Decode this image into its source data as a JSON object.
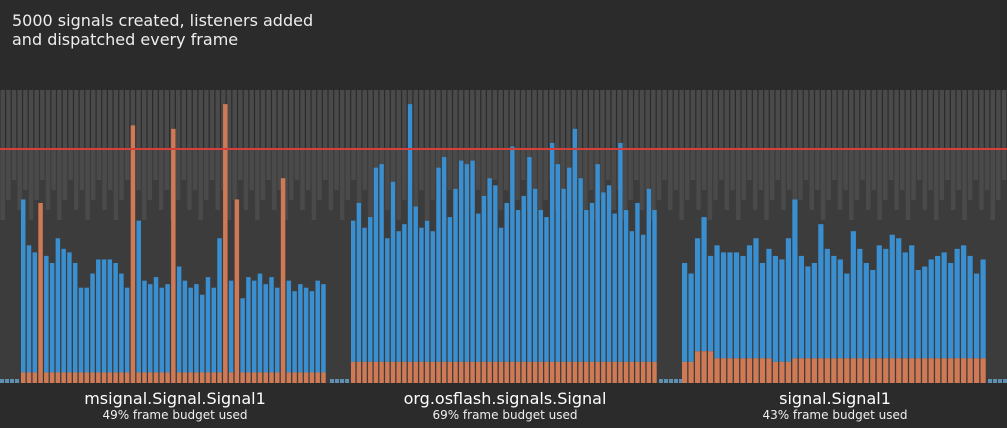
{
  "title": {
    "line1": "5000 signals created, listeners added",
    "line2": "and dispatched every frame"
  },
  "colors": {
    "background": "#2b2b2b",
    "plot_area": "#3c3c3c",
    "bg_bars": "#4a4a4a",
    "dispatch": "#3a8fd1",
    "create": "#cf7a55",
    "idle": "#5e8fb0",
    "budget_line": "#d6403b"
  },
  "chart_data": {
    "type": "bar",
    "stacked": true,
    "ylim": [
      0,
      1
    ],
    "grid": false,
    "budget_line": 0.7,
    "sections": [
      {
        "name": "msignal.Signal.Signal1",
        "budget_text": "49% frame budget used",
        "totals": [
          0.52,
          0.39,
          0.37,
          0.51,
          0.36,
          0.34,
          0.41,
          0.38,
          0.37,
          0.34,
          0.27,
          0.27,
          0.31,
          0.35,
          0.35,
          0.35,
          0.34,
          0.31,
          0.27,
          0.73,
          0.46,
          0.29,
          0.28,
          0.3,
          0.27,
          0.28,
          0.72,
          0.33,
          0.29,
          0.27,
          0.28,
          0.25,
          0.3,
          0.27,
          0.41,
          0.79,
          0.29,
          0.52,
          0.24,
          0.3,
          0.29,
          0.31,
          0.28,
          0.3,
          0.27,
          0.58,
          0.29,
          0.26,
          0.28,
          0.27,
          0.26,
          0.29,
          0.28
        ],
        "creates": [
          0.03,
          0.03,
          0.03,
          0.51,
          0.03,
          0.03,
          0.03,
          0.03,
          0.03,
          0.03,
          0.03,
          0.03,
          0.03,
          0.03,
          0.03,
          0.03,
          0.03,
          0.03,
          0.03,
          0.73,
          0.03,
          0.03,
          0.03,
          0.03,
          0.03,
          0.03,
          0.72,
          0.03,
          0.03,
          0.03,
          0.03,
          0.03,
          0.03,
          0.03,
          0.03,
          0.79,
          0.03,
          0.52,
          0.03,
          0.03,
          0.03,
          0.03,
          0.03,
          0.03,
          0.03,
          0.58,
          0.03,
          0.03,
          0.03,
          0.03,
          0.03,
          0.03,
          0.03
        ]
      },
      {
        "name": "org.osflash.signals.Signal",
        "budget_text": "69% frame budget used",
        "totals": [
          0.46,
          0.51,
          0.44,
          0.47,
          0.61,
          0.62,
          0.41,
          0.57,
          0.43,
          0.45,
          0.79,
          0.5,
          0.44,
          0.46,
          0.43,
          0.61,
          0.64,
          0.47,
          0.55,
          0.63,
          0.62,
          0.63,
          0.48,
          0.53,
          0.58,
          0.56,
          0.44,
          0.51,
          0.67,
          0.49,
          0.53,
          0.64,
          0.55,
          0.49,
          0.47,
          0.68,
          0.62,
          0.55,
          0.61,
          0.72,
          0.58,
          0.49,
          0.51,
          0.62,
          0.54,
          0.56,
          0.48,
          0.68,
          0.49,
          0.43,
          0.51,
          0.42,
          0.55,
          0.49
        ],
        "creates": [
          0.06,
          0.06,
          0.06,
          0.06,
          0.06,
          0.06,
          0.06,
          0.06,
          0.06,
          0.06,
          0.06,
          0.06,
          0.06,
          0.06,
          0.06,
          0.06,
          0.06,
          0.06,
          0.06,
          0.06,
          0.06,
          0.06,
          0.06,
          0.06,
          0.06,
          0.06,
          0.06,
          0.06,
          0.06,
          0.06,
          0.06,
          0.06,
          0.06,
          0.06,
          0.06,
          0.06,
          0.06,
          0.06,
          0.06,
          0.06,
          0.06,
          0.06,
          0.06,
          0.06,
          0.06,
          0.06,
          0.06,
          0.06,
          0.06,
          0.06,
          0.06,
          0.06,
          0.06,
          0.06
        ]
      },
      {
        "name": "signal.Signal1",
        "budget_text": "43% frame budget used",
        "totals": [
          0.34,
          0.31,
          0.41,
          0.47,
          0.36,
          0.39,
          0.37,
          0.37,
          0.37,
          0.36,
          0.39,
          0.41,
          0.34,
          0.38,
          0.36,
          0.35,
          0.41,
          0.52,
          0.36,
          0.33,
          0.34,
          0.45,
          0.38,
          0.36,
          0.35,
          0.31,
          0.43,
          0.38,
          0.34,
          0.32,
          0.39,
          0.38,
          0.42,
          0.41,
          0.37,
          0.39,
          0.32,
          0.33,
          0.35,
          0.36,
          0.37,
          0.34,
          0.38,
          0.39,
          0.36,
          0.31,
          0.35
        ],
        "creates": [
          0.06,
          0.06,
          0.09,
          0.09,
          0.09,
          0.07,
          0.07,
          0.07,
          0.07,
          0.07,
          0.07,
          0.07,
          0.07,
          0.07,
          0.06,
          0.06,
          0.06,
          0.07,
          0.07,
          0.07,
          0.07,
          0.07,
          0.07,
          0.07,
          0.07,
          0.07,
          0.07,
          0.07,
          0.07,
          0.07,
          0.07,
          0.07,
          0.07,
          0.07,
          0.07,
          0.07,
          0.07,
          0.07,
          0.07,
          0.07,
          0.07,
          0.07,
          0.07,
          0.07,
          0.07,
          0.07,
          0.07
        ]
      }
    ],
    "background_bars": [
      0.62,
      0.58,
      0.66,
      0.6,
      0.64,
      0.57,
      0.61,
      0.63,
      0.59,
      0.65,
      0.56,
      0.62,
      0.6,
      0.64,
      0.58,
      0.63,
      0.57,
      0.61,
      0.66,
      0.59,
      0.62,
      0.6,
      0.64,
      0.58,
      0.61,
      0.63,
      0.57,
      0.65,
      0.6,
      0.62,
      0.59,
      0.64,
      0.58,
      0.61,
      0.66,
      0.57,
      0.63,
      0.6,
      0.62,
      0.59,
      0.64,
      0.58,
      0.61,
      0.63,
      0.6,
      0.57,
      0.65,
      0.62,
      0.59,
      0.61,
      0.64,
      0.58,
      0.63,
      0.6,
      0.62,
      0.66,
      0.57,
      0.61,
      0.64,
      0.59,
      0.63,
      0.58,
      0.6,
      0.62,
      0.65,
      0.57,
      0.61,
      0.64,
      0.59,
      0.62,
      0.6,
      0.63,
      0.58,
      0.61,
      0.64,
      0.57,
      0.62,
      0.6,
      0.66,
      0.59,
      0.63,
      0.58,
      0.61,
      0.64,
      0.6,
      0.62,
      0.57,
      0.63,
      0.59,
      0.61,
      0.65,
      0.58,
      0.62,
      0.6,
      0.64,
      0.59,
      0.61,
      0.63,
      0.57,
      0.62,
      0.6,
      0.64,
      0.58,
      0.61,
      0.63,
      0.59,
      0.62,
      0.6,
      0.65,
      0.57,
      0.61,
      0.63,
      0.58,
      0.62,
      0.6,
      0.64,
      0.59,
      0.61,
      0.63,
      0.58,
      0.62,
      0.6,
      0.64,
      0.57,
      0.61,
      0.63,
      0.59,
      0.62,
      0.6,
      0.64,
      0.58,
      0.61,
      0.63,
      0.59,
      0.62,
      0.6,
      0.65,
      0.57,
      0.61,
      0.63,
      0.58,
      0.62,
      0.6,
      0.64,
      0.59,
      0.61,
      0.63,
      0.58,
      0.62,
      0.6,
      0.64,
      0.57,
      0.61,
      0.63,
      0.59,
      0.62,
      0.6,
      0.64,
      0.58,
      0.61,
      0.63,
      0.59,
      0.62,
      0.6,
      0.65,
      0.57,
      0.61,
      0.63,
      0.58,
      0.62,
      0.6,
      0.64,
      0.59,
      0.61,
      0.63,
      0.58,
      0.62,
      0.6
    ]
  }
}
